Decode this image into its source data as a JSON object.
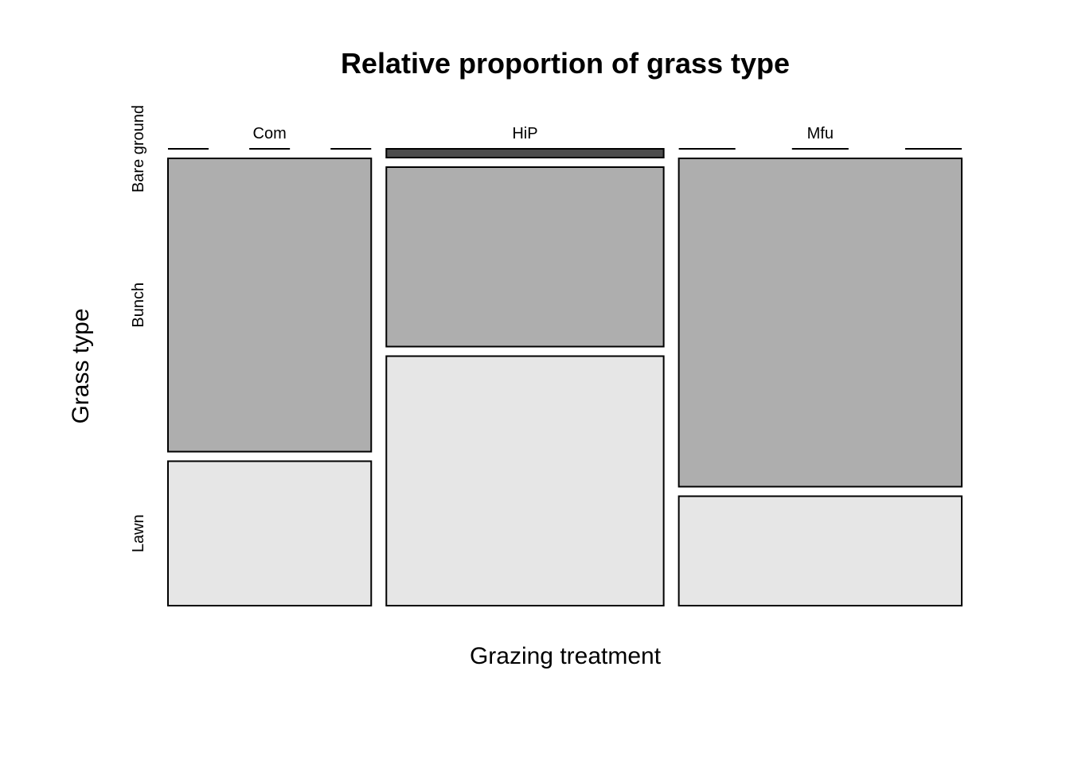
{
  "chart_data": {
    "type": "mosaic",
    "title": "Relative proportion of grass type",
    "xlabel": "Grazing treatment",
    "ylabel": "Grass type",
    "categories": [
      "Com",
      "HiP",
      "Mfu"
    ],
    "column_widths": [
      0.255,
      0.348,
      0.355
    ],
    "levels": [
      "Bare ground",
      "Bunch",
      "Lawn"
    ],
    "series": [
      {
        "name": "Bare ground",
        "color": "#4d4d4d",
        "values": [
          0.0,
          0.02,
          0.0
        ]
      },
      {
        "name": "Bunch",
        "color": "#aeaeae",
        "values": [
          0.67,
          0.41,
          0.75
        ]
      },
      {
        "name": "Lawn",
        "color": "#e6e6e6",
        "values": [
          0.33,
          0.57,
          0.25
        ]
      }
    ],
    "ylim": [
      0,
      1
    ]
  }
}
